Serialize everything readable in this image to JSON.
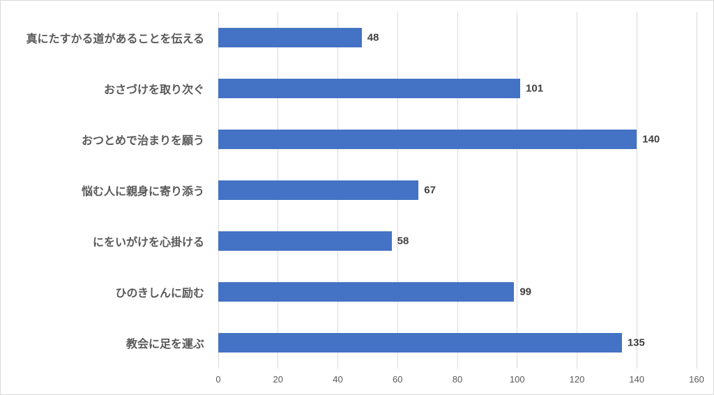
{
  "chart_data": {
    "type": "bar",
    "orientation": "horizontal",
    "title": "",
    "categories": [
      "真にたすかる道があることを伝える",
      "おさづけを取り次ぐ",
      "おつとめで治まりを願う",
      "悩む人に親身に寄り添う",
      "にをいがけを心掛ける",
      "ひのきしんに励む",
      "教会に足を運ぶ"
    ],
    "values": [
      48,
      101,
      140,
      67,
      58,
      99,
      135
    ],
    "x_ticks": [
      0,
      20,
      40,
      60,
      80,
      100,
      120,
      140,
      160
    ],
    "xlim": [
      0,
      160
    ],
    "xlabel": "",
    "ylabel": "",
    "grid": true,
    "legend": false,
    "colors": {
      "bar": "#4472c4",
      "gridline": "#d9d9d9",
      "category_label": "#595959",
      "value_label": "#404040",
      "tick_label": "#595959",
      "border": "#d9d9d9",
      "background": "#ffffff"
    }
  }
}
